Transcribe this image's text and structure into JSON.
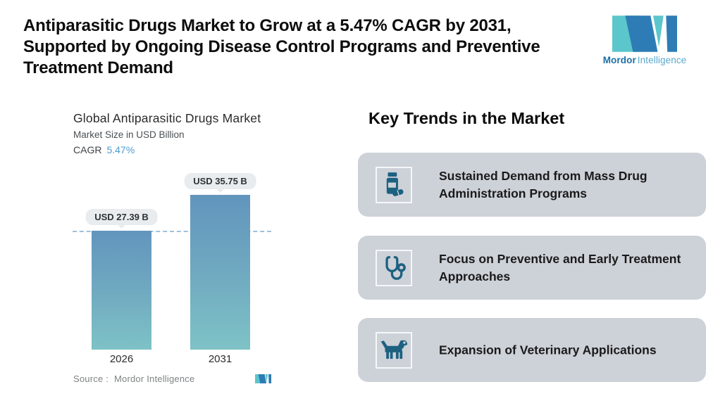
{
  "header": {
    "title_lines": [
      "Antiparasitic Drugs Market to Grow at a 5.47% CAGR by 2031,",
      "Supported by Ongoing Disease Control Programs and Preventive",
      "Treatment Demand"
    ],
    "logo": {
      "brand_bold": "Mordor",
      "brand_light": "Intelligence"
    }
  },
  "chart": {
    "title": "Global Antiparasitic Drugs Market",
    "subtitle": "Market Size in USD Billion",
    "cagr_label": "CAGR",
    "cagr_value": "5.47%",
    "source_label": "Source :",
    "source_value": "Mordor Intelligence"
  },
  "chart_data": {
    "type": "bar",
    "title": "Global Antiparasitic Drugs Market",
    "ylabel": "Market Size in USD Billion",
    "cagr": "5.47%",
    "categories": [
      "2026",
      "2031"
    ],
    "values": [
      27.39,
      35.75
    ],
    "value_labels": [
      "USD 27.39 B",
      "USD 35.75 B"
    ],
    "reference_line": 27.39,
    "grid": false,
    "legend": false,
    "bar_gradient_top": "#6295BD",
    "bar_gradient_bottom": "#7EC2C6"
  },
  "trends": {
    "heading": "Key Trends in the Market",
    "items": [
      {
        "icon": "pill-bottle-icon",
        "text": "Sustained Demand from Mass Drug Administration Programs"
      },
      {
        "icon": "stethoscope-icon",
        "text": "Focus on Preventive and Early Treatment Approaches"
      },
      {
        "icon": "dog-icon",
        "text": "Expansion of Veterinary Applications"
      }
    ]
  },
  "colors": {
    "accent_blue": "#4E9BD1",
    "card_bg": "#CDD1D8",
    "icon_color": "#1D6181",
    "dashed_line": "#9DC1DD",
    "pill_bg": "#E8ECEE",
    "logo_teal": "#5BC6CB",
    "logo_blue": "#2E7CB5"
  }
}
